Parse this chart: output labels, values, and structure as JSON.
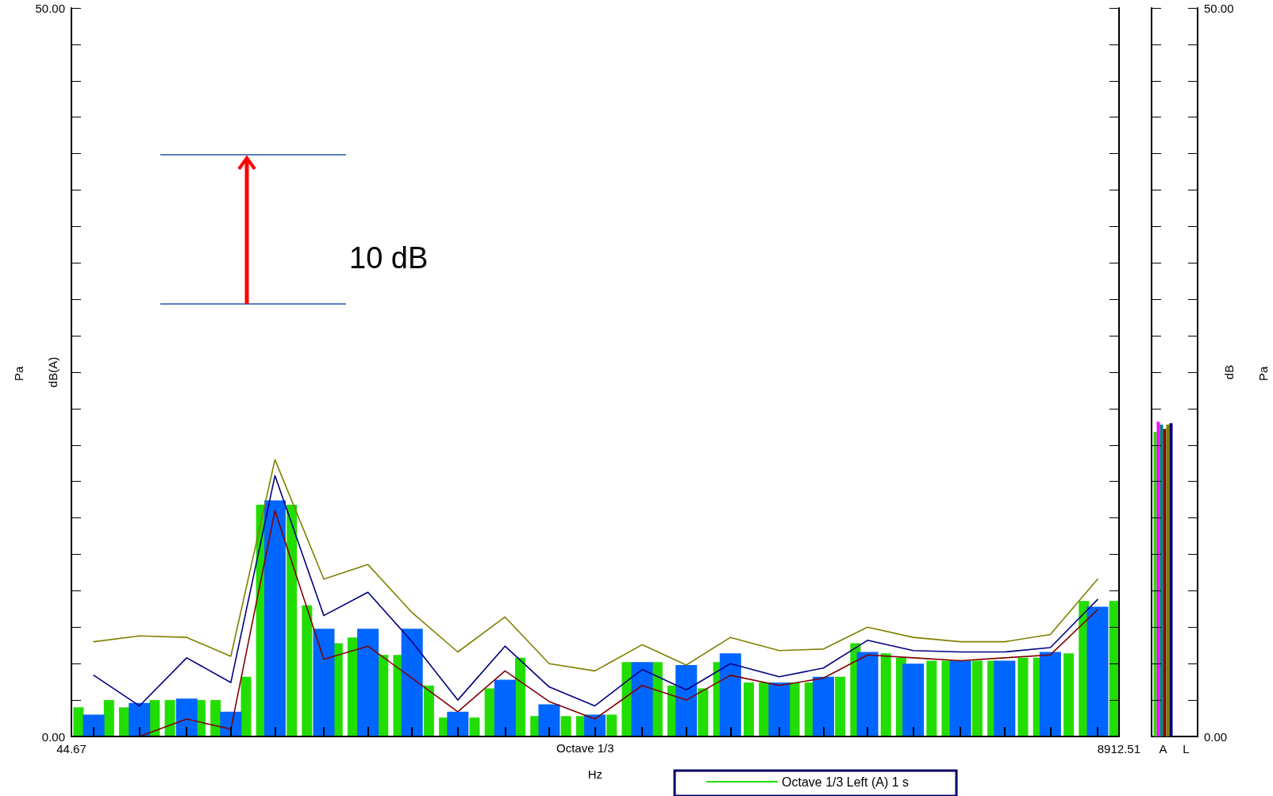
{
  "chart_data": [
    {
      "type": "bar",
      "xlabel": "Hz",
      "ylabel": "dB(A)",
      "annotations": [
        "10 dB",
        "Octave 1/3",
        "Pa"
      ],
      "log": "x",
      "legend": "bottom",
      "xlim": [
        44.67,
        8912.51
      ],
      "xticks": [
        44.67,
        {
          "value": 50,
          "label": null
        },
        {
          "value": 63,
          "label": null
        },
        {
          "value": 80,
          "label": null
        },
        {
          "value": 100,
          "label": null
        },
        {
          "value": 125,
          "label": null
        },
        {
          "value": 160,
          "label": null
        },
        {
          "value": 200,
          "label": null
        },
        {
          "value": 250,
          "label": null
        },
        {
          "value": 315,
          "label": null
        },
        {
          "value": 400,
          "label": null
        },
        {
          "value": 500,
          "label": null
        },
        {
          "value": 630,
          "label": null
        },
        {
          "value": 800,
          "label": null
        },
        {
          "value": 1000,
          "label": null
        },
        {
          "value": 1250,
          "label": null
        },
        {
          "value": 1600,
          "label": null
        },
        {
          "value": 2000,
          "label": null
        },
        {
          "value": 2500,
          "label": null
        },
        {
          "value": 3150,
          "label": null
        },
        {
          "value": 4000,
          "label": null
        },
        {
          "value": 5000,
          "label": null
        },
        {
          "value": 6300,
          "label": null
        },
        {
          "value": 8000,
          "label": null
        },
        8912.51
      ],
      "ylim": [
        0,
        50
      ],
      "yticks": [
        {
          "value": 0,
          "label": "0.00"
        },
        {
          "value": 2.5,
          "label": null
        },
        {
          "value": 5,
          "label": null
        },
        {
          "value": 7.5,
          "label": null
        },
        {
          "value": 10,
          "label": null
        },
        {
          "value": 12.5,
          "label": null
        },
        {
          "value": 15,
          "label": null
        },
        {
          "value": 17.5,
          "label": null
        },
        {
          "value": 20,
          "label": null
        },
        {
          "value": 22.5,
          "label": null
        },
        {
          "value": 25,
          "label": null
        },
        {
          "value": 27.5,
          "label": null
        },
        {
          "value": 30,
          "label": null
        },
        {
          "value": 32.5,
          "label": null
        },
        {
          "value": 35,
          "label": null
        },
        {
          "value": 37.5,
          "label": null
        },
        {
          "value": 40,
          "label": null
        },
        {
          "value": 42.5,
          "label": null
        },
        {
          "value": 45,
          "label": null
        },
        {
          "value": 47.5,
          "label": null
        },
        {
          "value": 50,
          "label": "50.00"
        }
      ],
      "series": [
        {
          "name": "Octave 1/3 Left (A) 1 s",
          "color": "#22dd00",
          "x": [
            46.29,
            54.0,
            58.32,
            68.04,
            73.49,
            85.72,
            92.59,
            108.0,
            116.6,
            136.1,
            147.0,
            171.5,
            185.2,
            216.0,
            233.3,
            272.2,
            294.0,
            342.9,
            370.4,
            432.0,
            466.6,
            544.3,
            587.9,
            685.8,
            740.8,
            864.1,
            933.3,
            1088.7,
            1175.9,
            1371.7,
            1481.5,
            1728.2,
            1866.6,
            2177.5,
            2351.8,
            2743.4,
            2963.0,
            3456.5,
            3733.2,
            4354.9,
            4703.6,
            5486.8,
            5926.0,
            6912.9,
            7466.4,
            8709.9
          ],
          "values": [
            2.0,
            2.5,
            2.0,
            2.5,
            2.5,
            2.5,
            2.5,
            4.1,
            15.9,
            15.9,
            9.0,
            6.4,
            6.8,
            5.6,
            5.6,
            3.5,
            1.3,
            1.3,
            3.3,
            5.4,
            1.4,
            1.4,
            1.4,
            1.5,
            5.1,
            5.1,
            3.5,
            3.3,
            5.1,
            3.7,
            3.7,
            3.7,
            3.7,
            4.1,
            6.4,
            5.7,
            5.4,
            5.2,
            5.2,
            5.2,
            5.2,
            5.4,
            5.4,
            5.7,
            9.3,
            9.3
          ]
        },
        {
          "color": "#0066ff",
          "x": [
            50,
            63,
            80,
            100,
            125,
            160,
            200,
            250,
            315,
            400,
            500,
            630,
            800,
            1000,
            1250,
            1600,
            2000,
            2500,
            3150,
            4000,
            5000,
            6300,
            8000
          ],
          "values": [
            1.5,
            2.3,
            2.6,
            1.7,
            16.2,
            7.4,
            7.4,
            7.4,
            1.7,
            3.9,
            2.2,
            1.5,
            5.1,
            4.9,
            5.7,
            3.7,
            4.1,
            5.8,
            5.0,
            5.2,
            5.2,
            5.8,
            8.9
          ]
        },
        {
          "type": "line",
          "color": "#808000",
          "x": [
            50,
            63,
            80,
            100,
            125,
            160,
            200,
            250,
            315,
            400,
            500,
            630,
            800,
            1000,
            1250,
            1600,
            2000,
            2500,
            3150,
            4000,
            5000,
            6300,
            8000
          ],
          "values": [
            6.5,
            6.9,
            6.8,
            5.5,
            19.0,
            10.8,
            11.8,
            8.5,
            5.8,
            8.2,
            5.0,
            4.5,
            6.3,
            4.9,
            6.8,
            5.9,
            6.0,
            7.5,
            6.8,
            6.5,
            6.5,
            7.0,
            10.8
          ]
        },
        {
          "type": "line",
          "color": "#000080",
          "x": [
            50,
            63,
            80,
            100,
            125,
            160,
            200,
            250,
            315,
            400,
            500,
            630,
            800,
            1000,
            1250,
            1600,
            2000,
            2500,
            3150,
            4000,
            5000,
            6300,
            8000
          ],
          "values": [
            4.2,
            2.1,
            5.4,
            3.7,
            17.9,
            8.3,
            9.9,
            6.5,
            2.5,
            6.2,
            3.4,
            2.1,
            4.6,
            3.2,
            5.0,
            4.1,
            4.7,
            6.6,
            5.9,
            5.8,
            5.8,
            6.1,
            9.4
          ]
        },
        {
          "type": "line",
          "color": "#800000",
          "x": [
            50,
            63,
            80,
            100,
            125,
            160,
            200,
            250,
            315,
            400,
            500,
            630,
            800,
            1000,
            1250,
            1600,
            2000,
            2500,
            3150,
            4000,
            5000,
            6300,
            8000
          ],
          "values": [
            0.0,
            0.0,
            1.2,
            0.5,
            15.5,
            5.3,
            6.2,
            4.0,
            1.7,
            4.5,
            2.4,
            1.2,
            3.5,
            2.5,
            4.2,
            3.5,
            4.0,
            5.6,
            5.4,
            5.2,
            5.4,
            5.6,
            8.7
          ]
        }
      ]
    },
    {
      "type": "bar",
      "categories": [
        "A",
        "L"
      ],
      "y2label": "dB",
      "annotations": [
        "Pa"
      ],
      "y2lim": [
        0,
        50
      ],
      "y2ticks": [
        {
          "value": 0,
          "label": "0.00"
        },
        {
          "value": 2.5,
          "label": null
        },
        {
          "value": 5,
          "label": null
        },
        {
          "value": 7.5,
          "label": null
        },
        {
          "value": 10,
          "label": null
        },
        {
          "value": 12.5,
          "label": null
        },
        {
          "value": 15,
          "label": null
        },
        {
          "value": 17.5,
          "label": null
        },
        {
          "value": 20,
          "label": null
        },
        {
          "value": 22.5,
          "label": null
        },
        {
          "value": 25,
          "label": null
        },
        {
          "value": 27.5,
          "label": null
        },
        {
          "value": 30,
          "label": null
        },
        {
          "value": 32.5,
          "label": null
        },
        {
          "value": 35,
          "label": null
        },
        {
          "value": 37.5,
          "label": null
        },
        {
          "value": 40,
          "label": null
        },
        {
          "value": 42.5,
          "label": null
        },
        {
          "value": 45,
          "label": null
        },
        {
          "value": 47.5,
          "label": null
        },
        {
          "value": 50,
          "label": "50.00"
        }
      ],
      "series": [
        {
          "axis": "y2",
          "color": "#22dd00",
          "values": [
            20.9,
            null
          ]
        },
        {
          "axis": "y2",
          "color": "#ff00ff",
          "values": [
            21.6,
            null
          ]
        },
        {
          "axis": "y2",
          "color": "#008080",
          "values": [
            21.4,
            null
          ]
        },
        {
          "axis": "y2",
          "color": "#800000",
          "values": [
            21.1,
            null
          ]
        },
        {
          "axis": "y2",
          "color": "#808000",
          "values": [
            21.4,
            null
          ]
        },
        {
          "axis": "y2",
          "color": "#000080",
          "values": [
            21.5,
            null
          ]
        }
      ]
    }
  ]
}
